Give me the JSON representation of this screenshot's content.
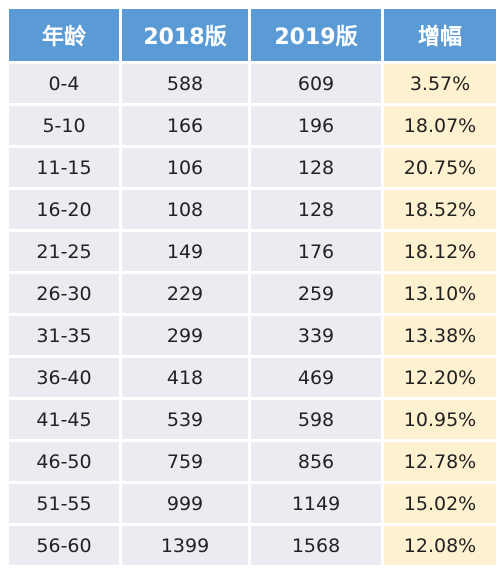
{
  "table": {
    "headers": [
      "年龄",
      "2018版",
      "2019版",
      "增幅"
    ],
    "rows": [
      [
        "0-4",
        "588",
        "609",
        "3.57%"
      ],
      [
        "5-10",
        "166",
        "196",
        "18.07%"
      ],
      [
        "11-15",
        "106",
        "128",
        "20.75%"
      ],
      [
        "16-20",
        "108",
        "128",
        "18.52%"
      ],
      [
        "21-25",
        "149",
        "176",
        "18.12%"
      ],
      [
        "26-30",
        "229",
        "259",
        "13.10%"
      ],
      [
        "31-35",
        "299",
        "339",
        "13.38%"
      ],
      [
        "36-40",
        "418",
        "469",
        "12.20%"
      ],
      [
        "41-45",
        "539",
        "598",
        "10.95%"
      ],
      [
        "46-50",
        "759",
        "856",
        "12.78%"
      ],
      [
        "51-55",
        "999",
        "1149",
        "15.02%"
      ],
      [
        "56-60",
        "1399",
        "1568",
        "12.08%"
      ]
    ]
  },
  "colors": {
    "header_bg": "#5b9bd5",
    "cell_bg": "#eaecf1",
    "increase_bg": "#fdf1cf"
  }
}
